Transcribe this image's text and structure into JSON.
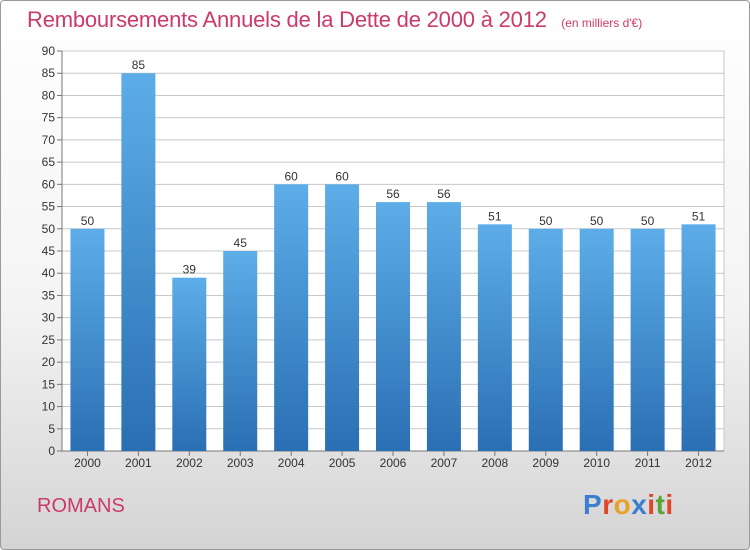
{
  "header": {
    "title": "Remboursements Annuels de la Dette de 2000 à 2012",
    "subtitle": "(en milliers d'€)"
  },
  "footer": {
    "commune": "ROMANS",
    "logo_text": "Proxiti",
    "logo_colors": [
      "#3a7fd0",
      "#e0452a",
      "#e8a22a",
      "#3a7fd0",
      "#e0452a",
      "#5aa43a",
      "#e0452a"
    ]
  },
  "colors": {
    "bar_top": "#5dade8",
    "bar_bottom": "#2a6fb3",
    "text_accent": "#cc3a6a",
    "grid": "#c8c8c8"
  },
  "chart_data": {
    "type": "bar",
    "title": "Remboursements Annuels de la Dette de 2000 à 2012",
    "subtitle": "(en milliers d'€)",
    "categories": [
      "2000",
      "2001",
      "2002",
      "2003",
      "2004",
      "2005",
      "2006",
      "2007",
      "2008",
      "2009",
      "2010",
      "2011",
      "2012"
    ],
    "values": [
      50,
      85,
      39,
      45,
      60,
      60,
      56,
      56,
      51,
      50,
      50,
      50,
      51
    ],
    "ylim": [
      0,
      90
    ],
    "ytick_step": 5,
    "grid": true,
    "data_labels": true,
    "legend": "none"
  }
}
